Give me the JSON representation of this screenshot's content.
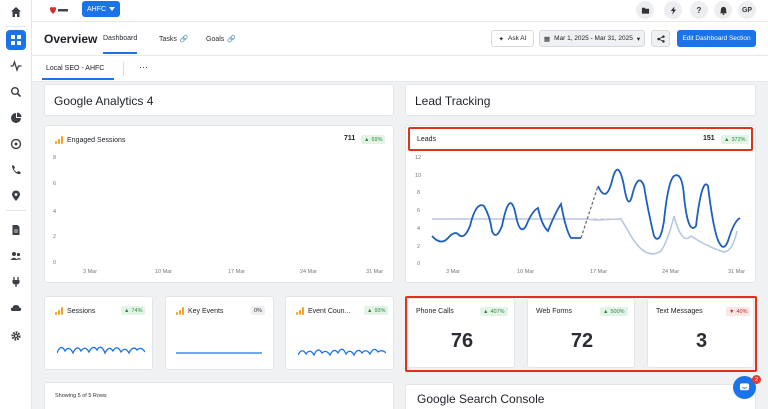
{
  "topbar": {
    "client_label": "AHFC",
    "avatar_initials": "GP"
  },
  "header": {
    "title": "Overview",
    "tabs": [
      {
        "label": "Dashboard"
      },
      {
        "label": "Tasks"
      },
      {
        "label": "Goals"
      }
    ],
    "ask_ai_label": "Ask AI",
    "date_range": "Mar 1, 2025 - Mar 31, 2025",
    "edit_label": "Edit Dashboard Section"
  },
  "subtab": {
    "label": "Local SEO - AHFC",
    "more": "···"
  },
  "sections": {
    "ga_title": "Google Analytics 4",
    "lead_title": "Lead Tracking",
    "gsc_title": "Google Search Console"
  },
  "engaged": {
    "title": "Engaged Sessions",
    "value": "711",
    "change": "69%",
    "y_ticks": [
      "8",
      "6",
      "4",
      "2",
      "0"
    ],
    "x_ticks": [
      "3 Mar",
      "10 Mar",
      "17 Mar",
      "24 Mar",
      "31 Mar"
    ]
  },
  "leads": {
    "title": "Leads",
    "value": "151",
    "change": "372%",
    "y_ticks": [
      "12",
      "10",
      "8",
      "6",
      "4",
      "2",
      "0"
    ],
    "x_ticks": [
      "3 Mar",
      "10 Mar",
      "17 Mar",
      "24 Mar",
      "31 Mar"
    ]
  },
  "small_metrics": [
    {
      "title": "Sessions",
      "change": "74%"
    },
    {
      "title": "Key Events",
      "change": "0%"
    },
    {
      "title": "Event Coun...",
      "change": "93%"
    }
  ],
  "lead_metrics": [
    {
      "title": "Phone Calls",
      "change": "407%",
      "value": "76"
    },
    {
      "title": "Web Forms",
      "change": "500%",
      "value": "72"
    },
    {
      "title": "Text Messages",
      "change": "40%",
      "value": "3"
    }
  ],
  "table": {
    "showing": "Showing 5 of 5 Rows"
  },
  "chat": {
    "badge": "2"
  },
  "colors": {
    "accent": "#1a73e8",
    "highlight": "#e0301e",
    "positive": "#2e8b43",
    "negative": "#c62828",
    "ga_orange": "#f4a11d"
  },
  "icons": {
    "sidebar": [
      "home-icon",
      "dashboard-icon",
      "activity-icon",
      "search-icon",
      "pie-chart-icon",
      "chat-icon",
      "phone-icon",
      "location-icon",
      "document-icon",
      "users-icon",
      "plug-icon",
      "gear-icon"
    ],
    "top": [
      "folder-icon",
      "lightning-icon",
      "help-icon",
      "bell-icon"
    ]
  }
}
